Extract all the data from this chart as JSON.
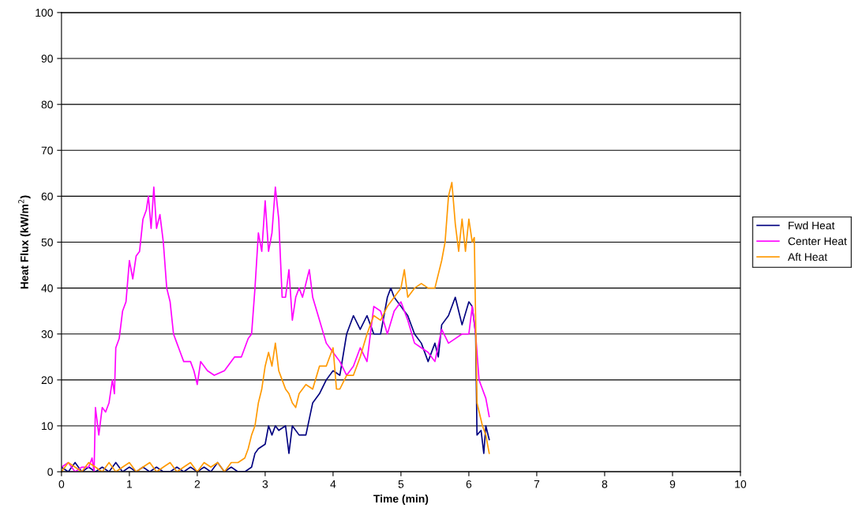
{
  "chart_data": {
    "type": "line",
    "xlabel": "Time (min)",
    "ylabel": "Heat Flux (kW/m$^{2}$)",
    "xlim": [
      0,
      10
    ],
    "ylim": [
      0,
      100
    ],
    "xticks": [
      0,
      1,
      2,
      3,
      4,
      5,
      6,
      7,
      8,
      9,
      10
    ],
    "yticks": [
      0,
      10,
      20,
      30,
      40,
      50,
      60,
      70,
      80,
      90,
      100
    ],
    "grid": "y",
    "legend": "right",
    "marker": "none",
    "line_style": "solid",
    "series": [
      {
        "name": "Fwd Heat",
        "color": "#000080",
        "x": [
          0,
          0.1,
          0.2,
          0.3,
          0.4,
          0.5,
          0.6,
          0.7,
          0.8,
          0.9,
          1.0,
          1.1,
          1.2,
          1.3,
          1.4,
          1.5,
          1.6,
          1.7,
          1.8,
          1.9,
          2.0,
          2.1,
          2.2,
          2.3,
          2.4,
          2.5,
          2.6,
          2.7,
          2.8,
          2.85,
          2.9,
          3.0,
          3.05,
          3.1,
          3.15,
          3.2,
          3.3,
          3.35,
          3.4,
          3.5,
          3.6,
          3.7,
          3.8,
          3.9,
          4.0,
          4.1,
          4.2,
          4.3,
          4.4,
          4.5,
          4.55,
          4.6,
          4.7,
          4.8,
          4.85,
          4.9,
          5.0,
          5.1,
          5.2,
          5.3,
          5.4,
          5.5,
          5.55,
          5.6,
          5.7,
          5.8,
          5.9,
          6.0,
          6.05,
          6.1,
          6.12,
          6.18,
          6.22,
          6.25,
          6.3
        ],
        "values": [
          1,
          0,
          2,
          0,
          1,
          0,
          1,
          0,
          2,
          0,
          1,
          0,
          1,
          0,
          1,
          0,
          0,
          1,
          0,
          1,
          0,
          1,
          0,
          2,
          0,
          1,
          0,
          0,
          1,
          4,
          5,
          6,
          10,
          8,
          10,
          9,
          10,
          4,
          10,
          8,
          8,
          15,
          17,
          20,
          22,
          21,
          30,
          34,
          31,
          34,
          32,
          30,
          30,
          38,
          40,
          38,
          36,
          34,
          30,
          28,
          24,
          28,
          25,
          32,
          34,
          38,
          32,
          37,
          36,
          30,
          8,
          9,
          4,
          10,
          7
        ]
      },
      {
        "name": "Center Heat",
        "color": "#ff00ff",
        "x": [
          0,
          0.1,
          0.2,
          0.3,
          0.4,
          0.45,
          0.48,
          0.5,
          0.55,
          0.6,
          0.65,
          0.7,
          0.75,
          0.78,
          0.8,
          0.85,
          0.9,
          0.95,
          1.0,
          1.05,
          1.1,
          1.15,
          1.2,
          1.25,
          1.28,
          1.32,
          1.36,
          1.4,
          1.45,
          1.5,
          1.55,
          1.6,
          1.65,
          1.7,
          1.75,
          1.8,
          1.9,
          1.95,
          2.0,
          2.05,
          2.15,
          2.25,
          2.4,
          2.55,
          2.65,
          2.75,
          2.8,
          2.85,
          2.9,
          2.95,
          3.0,
          3.05,
          3.1,
          3.15,
          3.2,
          3.25,
          3.3,
          3.35,
          3.4,
          3.45,
          3.5,
          3.55,
          3.65,
          3.7,
          3.8,
          3.9,
          4.0,
          4.1,
          4.2,
          4.3,
          4.4,
          4.5,
          4.6,
          4.7,
          4.8,
          4.9,
          5.0,
          5.1,
          5.2,
          5.3,
          5.4,
          5.5,
          5.6,
          5.7,
          5.8,
          5.9,
          6.0,
          6.05,
          6.1,
          6.15,
          6.2,
          6.25,
          6.3
        ],
        "values": [
          1,
          2,
          0,
          1,
          1,
          3,
          0,
          14,
          8,
          14,
          13,
          15,
          20,
          17,
          27,
          29,
          35,
          37,
          46,
          42,
          47,
          48,
          55,
          57,
          60,
          53,
          62,
          53,
          56,
          50,
          40,
          37,
          30,
          28,
          26,
          24,
          24,
          22,
          19,
          24,
          22,
          21,
          22,
          25,
          25,
          29,
          30,
          40,
          52,
          48,
          59,
          48,
          52,
          62,
          55,
          38,
          38,
          44,
          33,
          38,
          40,
          38,
          44,
          38,
          33,
          28,
          26,
          24,
          21,
          23,
          27,
          24,
          36,
          35,
          30,
          35,
          37,
          33,
          28,
          27,
          26,
          24,
          31,
          28,
          29,
          30,
          30,
          36,
          30,
          20,
          18,
          16,
          12
        ]
      },
      {
        "name": "Aft Heat",
        "color": "#ff9900",
        "x": [
          0,
          0.1,
          0.2,
          0.3,
          0.4,
          0.5,
          0.6,
          0.7,
          0.8,
          0.9,
          1.0,
          1.1,
          1.2,
          1.3,
          1.4,
          1.5,
          1.6,
          1.7,
          1.8,
          1.9,
          2.0,
          2.1,
          2.2,
          2.3,
          2.4,
          2.5,
          2.6,
          2.7,
          2.75,
          2.8,
          2.85,
          2.9,
          2.95,
          3.0,
          3.05,
          3.1,
          3.15,
          3.2,
          3.25,
          3.3,
          3.35,
          3.4,
          3.45,
          3.5,
          3.6,
          3.7,
          3.8,
          3.9,
          4.0,
          4.05,
          4.1,
          4.2,
          4.3,
          4.4,
          4.5,
          4.6,
          4.7,
          4.8,
          4.85,
          4.9,
          5.0,
          5.05,
          5.1,
          5.2,
          5.3,
          5.4,
          5.5,
          5.6,
          5.65,
          5.7,
          5.75,
          5.8,
          5.85,
          5.9,
          5.95,
          6.0,
          6.05,
          6.08,
          6.12,
          6.2,
          6.25,
          6.3
        ],
        "values": [
          0,
          2,
          1,
          0,
          2,
          1,
          0,
          2,
          0,
          1,
          2,
          0,
          1,
          2,
          0,
          1,
          2,
          0,
          1,
          2,
          0,
          2,
          1,
          2,
          0,
          2,
          2,
          3,
          5,
          8,
          10,
          15,
          18,
          23,
          26,
          23,
          28,
          22,
          20,
          18,
          17,
          15,
          14,
          17,
          19,
          18,
          23,
          23,
          27,
          18,
          18,
          21,
          21,
          25,
          30,
          34,
          33,
          36,
          37,
          38,
          40,
          44,
          38,
          40,
          41,
          40,
          40,
          46,
          50,
          60,
          63,
          54,
          48,
          55,
          48,
          55,
          50,
          51,
          15,
          10,
          8,
          4
        ]
      }
    ]
  }
}
